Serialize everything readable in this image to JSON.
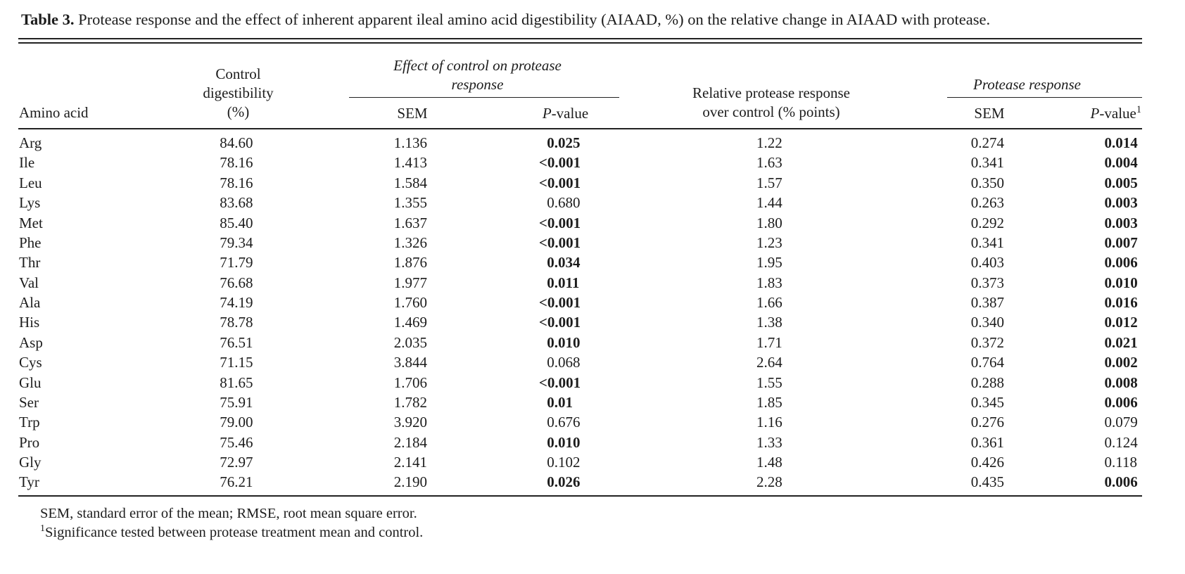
{
  "title": {
    "label": "Table 3.",
    "text": " Protease response and the effect of inherent apparent ileal amino acid digestibility (AIAAD, %) on the relative change in AIAAD with protease."
  },
  "table": {
    "headers": {
      "amino_acid": "Amino acid",
      "control_line1": "Control",
      "control_line2": "digestibility",
      "control_line3": "(%)",
      "group_effect_line1": "Effect of control on protease",
      "group_effect_line2": "response",
      "sem_effect": "SEM",
      "p_italic": "P",
      "p_rest": "-value",
      "relative_line1": "Relative protease response",
      "relative_line2": "over control (% points)",
      "group_protease": "Protease response",
      "sem_protease": "SEM",
      "p2_sup": "1"
    },
    "rows": [
      {
        "aa": "Arg",
        "control": "84.60",
        "sem1": "1.136",
        "p1": "0.025",
        "p1_bold": true,
        "rel": "1.22",
        "sem2": "0.274",
        "p2": "0.014",
        "p2_bold": true
      },
      {
        "aa": "Ile",
        "control": "78.16",
        "sem1": "1.413",
        "p1": "<0.001",
        "p1_bold": true,
        "rel": "1.63",
        "sem2": "0.341",
        "p2": "0.004",
        "p2_bold": true
      },
      {
        "aa": "Leu",
        "control": "78.16",
        "sem1": "1.584",
        "p1": "<0.001",
        "p1_bold": true,
        "rel": "1.57",
        "sem2": "0.350",
        "p2": "0.005",
        "p2_bold": true
      },
      {
        "aa": "Lys",
        "control": "83.68",
        "sem1": "1.355",
        "p1": "0.680",
        "p1_bold": false,
        "rel": "1.44",
        "sem2": "0.263",
        "p2": "0.003",
        "p2_bold": true
      },
      {
        "aa": "Met",
        "control": "85.40",
        "sem1": "1.637",
        "p1": "<0.001",
        "p1_bold": true,
        "rel": "1.80",
        "sem2": "0.292",
        "p2": "0.003",
        "p2_bold": true
      },
      {
        "aa": "Phe",
        "control": "79.34",
        "sem1": "1.326",
        "p1": "<0.001",
        "p1_bold": true,
        "rel": "1.23",
        "sem2": "0.341",
        "p2": "0.007",
        "p2_bold": true
      },
      {
        "aa": "Thr",
        "control": "71.79",
        "sem1": "1.876",
        "p1": "0.034",
        "p1_bold": true,
        "rel": "1.95",
        "sem2": "0.403",
        "p2": "0.006",
        "p2_bold": true
      },
      {
        "aa": "Val",
        "control": "76.68",
        "sem1": "1.977",
        "p1": "0.011",
        "p1_bold": true,
        "rel": "1.83",
        "sem2": "0.373",
        "p2": "0.010",
        "p2_bold": true
      },
      {
        "aa": "Ala",
        "control": "74.19",
        "sem1": "1.760",
        "p1": "<0.001",
        "p1_bold": true,
        "rel": "1.66",
        "sem2": "0.387",
        "p2": "0.016",
        "p2_bold": true
      },
      {
        "aa": "His",
        "control": "78.78",
        "sem1": "1.469",
        "p1": "<0.001",
        "p1_bold": true,
        "rel": "1.38",
        "sem2": "0.340",
        "p2": "0.012",
        "p2_bold": true
      },
      {
        "aa": "Asp",
        "control": "76.51",
        "sem1": "2.035",
        "p1": "0.010",
        "p1_bold": true,
        "rel": "1.71",
        "sem2": "0.372",
        "p2": "0.021",
        "p2_bold": true
      },
      {
        "aa": "Cys",
        "control": "71.15",
        "sem1": "3.844",
        "p1": "0.068",
        "p1_bold": false,
        "rel": "2.64",
        "sem2": "0.764",
        "p2": "0.002",
        "p2_bold": true
      },
      {
        "aa": "Glu",
        "control": "81.65",
        "sem1": "1.706",
        "p1": "<0.001",
        "p1_bold": true,
        "rel": "1.55",
        "sem2": "0.288",
        "p2": "0.008",
        "p2_bold": true
      },
      {
        "aa": "Ser",
        "control": "75.91",
        "sem1": "1.782",
        "p1": "0.01",
        "p1_bold": true,
        "rel": "1.85",
        "sem2": "0.345",
        "p2": "0.006",
        "p2_bold": true
      },
      {
        "aa": "Trp",
        "control": "79.00",
        "sem1": "3.920",
        "p1": "0.676",
        "p1_bold": false,
        "rel": "1.16",
        "sem2": "0.276",
        "p2": "0.079",
        "p2_bold": false
      },
      {
        "aa": "Pro",
        "control": "75.46",
        "sem1": "2.184",
        "p1": "0.010",
        "p1_bold": true,
        "rel": "1.33",
        "sem2": "0.361",
        "p2": "0.124",
        "p2_bold": false
      },
      {
        "aa": "Gly",
        "control": "72.97",
        "sem1": "2.141",
        "p1": "0.102",
        "p1_bold": false,
        "rel": "1.48",
        "sem2": "0.426",
        "p2": "0.118",
        "p2_bold": false
      },
      {
        "aa": "Tyr",
        "control": "76.21",
        "sem1": "2.190",
        "p1": "0.026",
        "p1_bold": true,
        "rel": "2.28",
        "sem2": "0.435",
        "p2": "0.006",
        "p2_bold": true
      }
    ]
  },
  "footnotes": {
    "line1": "SEM, standard error of the mean; RMSE, root mean square error.",
    "sup": "1",
    "line2": "Significance tested between protease treatment mean and control."
  }
}
